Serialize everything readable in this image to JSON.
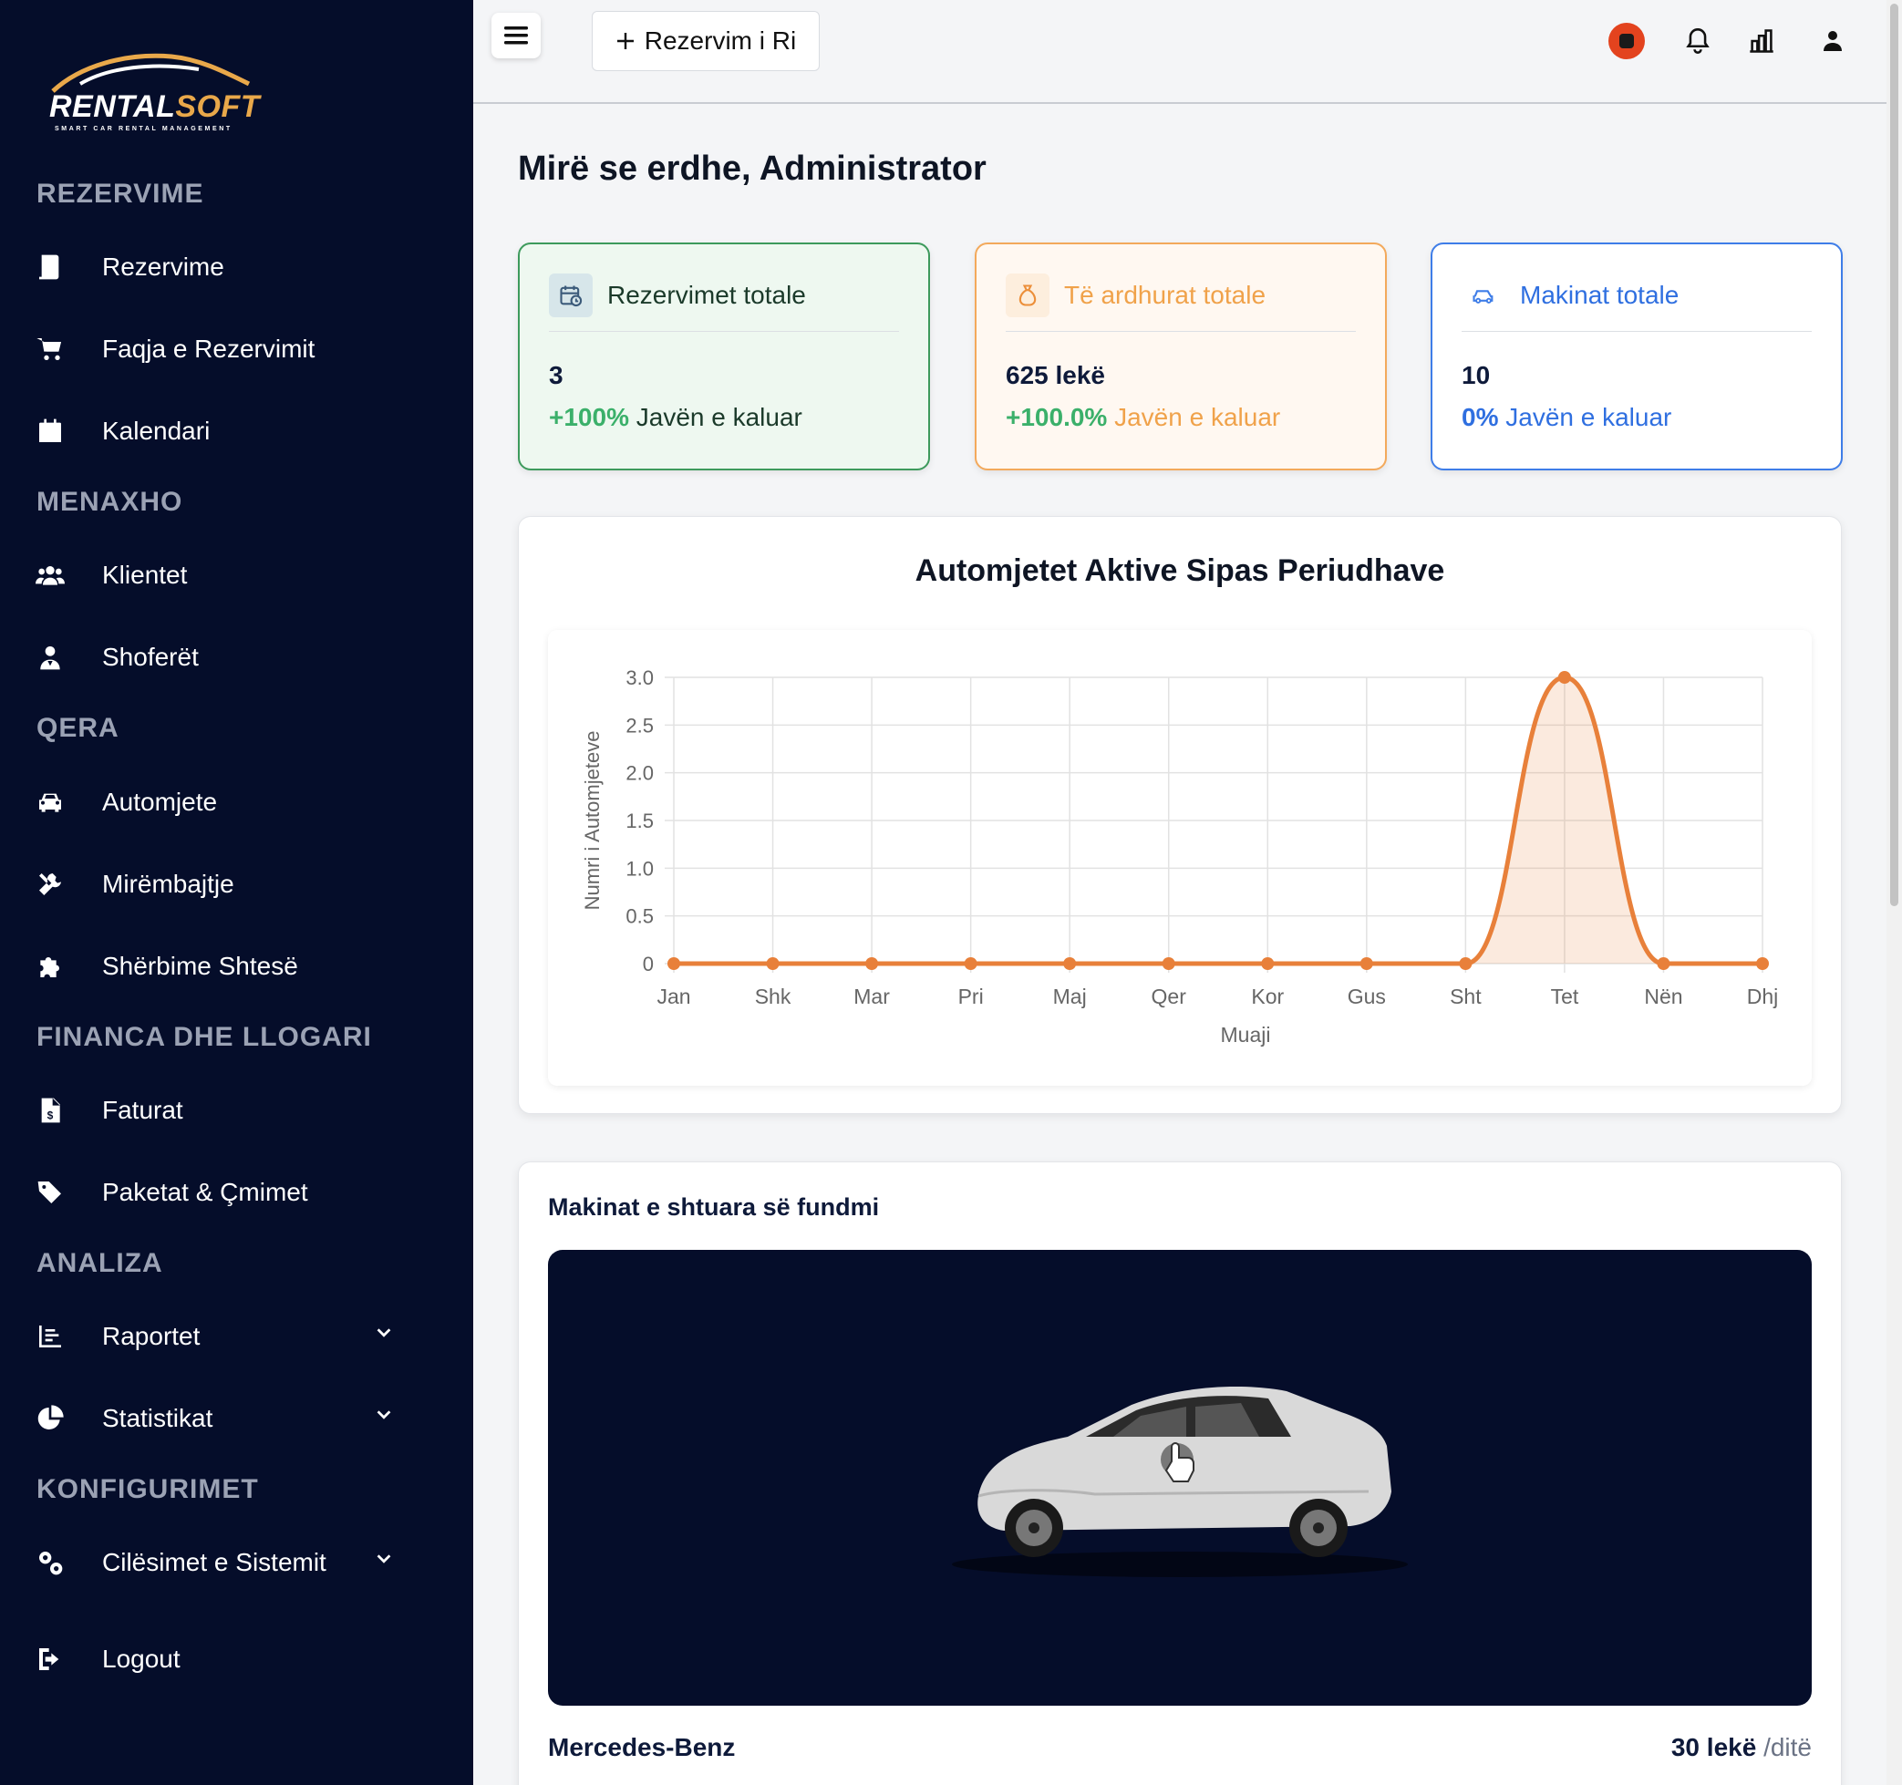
{
  "brand": {
    "logo_main": "RENTAL",
    "logo_accent": "SOFT",
    "tagline": "SMART CAR RENTAL MANAGEMENT"
  },
  "sidebar": {
    "sections": [
      {
        "title": "REZERVIME"
      },
      {
        "title": "MENAXHO"
      },
      {
        "title": "QERA"
      },
      {
        "title": "FINANCA DHE LLOGARI"
      },
      {
        "title": "ANALIZA"
      },
      {
        "title": "KONFIGURIMET"
      }
    ],
    "items": [
      {
        "label": "Rezervime",
        "icon": "book-icon"
      },
      {
        "label": "Faqja e Rezervimit",
        "icon": "cart-icon"
      },
      {
        "label": "Kalendari",
        "icon": "calendar-icon"
      },
      {
        "label": "Klientet",
        "icon": "users-icon"
      },
      {
        "label": "Shoferët",
        "icon": "driver-icon"
      },
      {
        "label": "Automjete",
        "icon": "car-icon"
      },
      {
        "label": "Mirëmbajtje",
        "icon": "tools-icon"
      },
      {
        "label": "Shërbime Shtesë",
        "icon": "puzzle-icon"
      },
      {
        "label": "Faturat",
        "icon": "invoice-icon"
      },
      {
        "label": "Paketat & Çmimet",
        "icon": "tags-icon"
      },
      {
        "label": "Raportet",
        "icon": "report-icon"
      },
      {
        "label": "Statistikat",
        "icon": "pie-chart-icon"
      },
      {
        "label": "Cilësimet e Sistemit",
        "icon": "gears-icon"
      },
      {
        "label": "Logout",
        "icon": "logout-icon"
      }
    ]
  },
  "header": {
    "new_reservation_label": "Rezervim i Ri",
    "icons": [
      "flag-icon",
      "bell-icon",
      "chart-bars-icon",
      "user-icon"
    ]
  },
  "main": {
    "welcome": "Mirë se erdhe, Administrator",
    "stats": [
      {
        "title": "Rezervimet totale",
        "value": "3",
        "change": "+100%",
        "period": "Javën e kaluar",
        "color": "#1f8a4c",
        "icon": "calendar-clock-icon"
      },
      {
        "title": "Të ardhurat totale",
        "value": "625 lekë",
        "change": "+100.0%",
        "period": "Javën e kaluar",
        "color": "#f0a24a",
        "icon": "money-bag-icon"
      },
      {
        "title": "Makinat totale",
        "value": "10",
        "change": "0%",
        "period": "Javën e kaluar",
        "color": "#2f6fe0",
        "icon": "car-icon"
      }
    ],
    "recent": {
      "title": "Makinat e shtuara së fundmi",
      "car_name": "Mercedes-Benz",
      "price": "30 lekë",
      "price_unit": "/ditë"
    }
  },
  "chart_data": {
    "type": "line",
    "title": "Automjetet Aktive Sipas Periudhave",
    "categories": [
      "Jan",
      "Shk",
      "Mar",
      "Pri",
      "Maj",
      "Qer",
      "Kor",
      "Gus",
      "Sht",
      "Tet",
      "Nën",
      "Dhj"
    ],
    "values": [
      0,
      0,
      0,
      0,
      0,
      0,
      0,
      0,
      0,
      3,
      0,
      0
    ],
    "xlabel": "Muaji",
    "ylabel": "Numri i Automjeteve",
    "ylim": [
      0,
      3
    ],
    "yticks": [
      "0",
      "0.5",
      "1.0",
      "1.5",
      "2.0",
      "2.5",
      "3.0"
    ],
    "grid": true,
    "color": "#e8803a"
  }
}
